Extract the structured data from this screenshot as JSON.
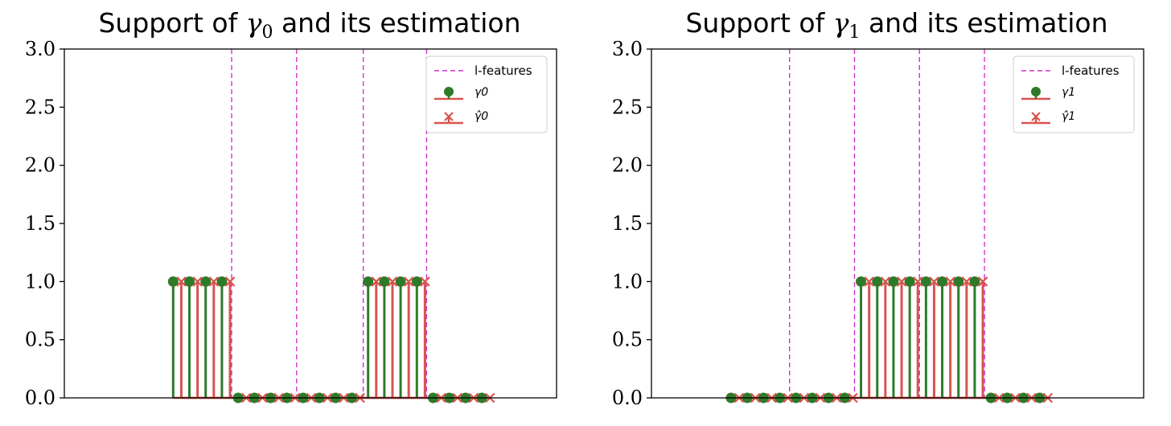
{
  "colors": {
    "true_stem": "#2f7a2a",
    "est_stem": "#d9534f",
    "features": "#cc33cc",
    "axes": "#000000"
  },
  "chart_data": [
    {
      "type": "stem",
      "title": {
        "prefix": "Support of ",
        "symbol": "γ",
        "subscript": "0",
        "suffix": " and its estimation"
      },
      "ylim": [
        0,
        3.0
      ],
      "yticks": [
        "0.0",
        "0.5",
        "1.0",
        "1.5",
        "2.0",
        "2.5",
        "3.0"
      ],
      "xlim": [
        -6.7,
        23.6
      ],
      "grid": false,
      "legend_position": "top-right",
      "feature_lines_x": [
        3.6,
        7.6,
        11.7,
        15.6
      ],
      "series": [
        {
          "name": "γ0",
          "marker": "o",
          "x": [
            0,
            1,
            2,
            3,
            4,
            5,
            6,
            7,
            8,
            9,
            10,
            11,
            12,
            13,
            14,
            15,
            16,
            17,
            18,
            19
          ],
          "values": [
            1,
            1,
            1,
            1,
            0,
            0,
            0,
            0,
            0,
            0,
            0,
            0,
            1,
            1,
            1,
            1,
            0,
            0,
            0,
            0
          ]
        },
        {
          "name": "γ̂0",
          "marker": "x",
          "x": [
            0.5,
            1.5,
            2.5,
            3.5,
            4.5,
            5.5,
            6.5,
            7.5,
            8.5,
            9.5,
            10.5,
            11.5,
            12.5,
            13.5,
            14.5,
            15.5,
            16.5,
            17.5,
            18.5,
            19.5
          ],
          "values": [
            1,
            1,
            1,
            1,
            0,
            0,
            0,
            0,
            0,
            0,
            0,
            0,
            1,
            1,
            1,
            1,
            0,
            0,
            0,
            0
          ]
        }
      ],
      "legend_entries": [
        "l-features",
        "γ0",
        "γ̂0"
      ]
    },
    {
      "type": "stem",
      "title": {
        "prefix": "Support of ",
        "symbol": "γ",
        "subscript": "1",
        "suffix": " and its estimation"
      },
      "ylim": [
        0,
        3.0
      ],
      "yticks": [
        "0.0",
        "0.5",
        "1.0",
        "1.5",
        "2.0",
        "2.5",
        "3.0"
      ],
      "xlim": [
        -4.9,
        25.4
      ],
      "grid": false,
      "legend_position": "top-right",
      "feature_lines_x": [
        3.6,
        7.6,
        11.6,
        15.6
      ],
      "series": [
        {
          "name": "γ1",
          "marker": "o",
          "x": [
            0,
            1,
            2,
            3,
            4,
            5,
            6,
            7,
            8,
            9,
            10,
            11,
            12,
            13,
            14,
            15,
            16,
            17,
            18,
            19
          ],
          "values": [
            0,
            0,
            0,
            0,
            0,
            0,
            0,
            0,
            1,
            1,
            1,
            1,
            1,
            1,
            1,
            1,
            0,
            0,
            0,
            0
          ]
        },
        {
          "name": "γ̂1",
          "marker": "x",
          "x": [
            0.5,
            1.5,
            2.5,
            3.5,
            4.5,
            5.5,
            6.5,
            7.5,
            8.5,
            9.5,
            10.5,
            11.5,
            12.5,
            13.5,
            14.5,
            15.5,
            16.5,
            17.5,
            18.5,
            19.5
          ],
          "values": [
            0,
            0,
            0,
            0,
            0,
            0,
            0,
            0,
            1,
            1,
            1,
            1,
            1,
            1,
            1,
            1,
            0,
            0,
            0,
            0
          ]
        }
      ],
      "legend_entries": [
        "l-features",
        "γ1",
        "γ̂1"
      ]
    }
  ]
}
